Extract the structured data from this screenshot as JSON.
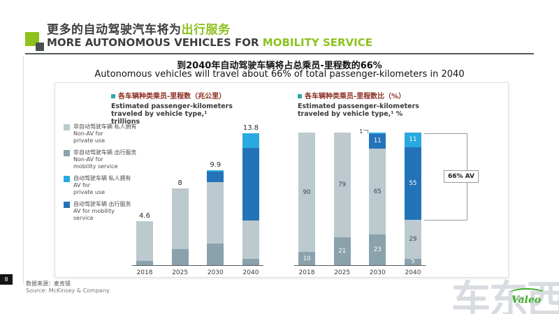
{
  "slide": {
    "title_zh_prefix": "更多的自动驾驶汽车将为",
    "title_zh_accent": "出行服务",
    "title_en_prefix": "MORE AUTONOMOUS VEHICLES FOR ",
    "title_en_accent": "MOBILITY SERVICE",
    "subtitle_zh": "到2040年自动驾驶车辆将占总乘员-里程数的66%",
    "subtitle_en": "Autonomous vehicles will travel about 66% of total passenger-kilometers in 2040",
    "page_number": "8",
    "source_zh": "数据来源：麦肯锡",
    "source_en": "Source: McKinsey & Company",
    "watermark": "车东西",
    "logo_text": "Valeo"
  },
  "colors": {
    "accent_green": "#8CC21E",
    "chart_title_red": "#8C2E21",
    "non_av_private": "#BCC9CF",
    "non_av_mobility": "#8AA2AB",
    "av_private": "#29A9E1",
    "av_mobility": "#2373B9"
  },
  "legend": [
    {
      "zh": "非自动驾驶车辆 私人拥有",
      "en1": "Non-AV for",
      "en2": "private use",
      "color_key": "non_av_private"
    },
    {
      "zh": "非自动驾驶车辆 出行服务",
      "en1": "Non-AV for",
      "en2": "mobility service",
      "color_key": "non_av_mobility"
    },
    {
      "zh": "自动驾驶车辆 私人拥有",
      "en1": "AV for",
      "en2": "private use",
      "color_key": "av_private"
    },
    {
      "zh": "自动驾驶车辆 出行服务",
      "en1": "AV for mobility",
      "en2": "service",
      "color_key": "av_mobility"
    }
  ],
  "chart_data": [
    {
      "type": "bar",
      "stacked": true,
      "title_zh": "各车辆种类乘员-里程数（兆公里）",
      "title_en": "Estimated passenger-kilometers traveled by vehicle type,¹ trillions",
      "categories": [
        "2018",
        "2025",
        "2030",
        "2040"
      ],
      "totals": [
        4.6,
        8,
        9.9,
        13.8
      ],
      "total_labels": [
        "4.6",
        "8",
        "9.9",
        "13.8"
      ],
      "ymax": 14.6,
      "series": [
        {
          "name": "Non-AV for mobility service",
          "key": "non-av-mobility",
          "color_key": "non_av_mobility",
          "values": [
            0.46,
            1.68,
            2.28,
            0.69
          ]
        },
        {
          "name": "Non-AV for private use",
          "key": "non-av-private",
          "color_key": "non_av_private",
          "dark_label": true,
          "values": [
            4.14,
            6.32,
            6.43,
            4.0
          ]
        },
        {
          "name": "AV for mobility service",
          "key": "av-mobility",
          "color_key": "av_mobility",
          "values": [
            0,
            0,
            1.09,
            7.59
          ]
        },
        {
          "name": "AV for private use",
          "key": "av-private",
          "color_key": "av_private",
          "values": [
            0,
            0,
            0.1,
            1.52
          ]
        }
      ]
    },
    {
      "type": "bar",
      "stacked": true,
      "percent": true,
      "show_segment_labels": true,
      "title_zh": "各车辆种类乘员-里程数比（%）",
      "title_en": "Estimated passenger-kilometers traveled by vehicle type,¹ %",
      "categories": [
        "2018",
        "2025",
        "2030",
        "2040"
      ],
      "annotation": "66% AV",
      "series": [
        {
          "name": "Non-AV for mobility service",
          "key": "non-av-mobility",
          "color_key": "non_av_mobility",
          "values": [
            10,
            21,
            23,
            5
          ]
        },
        {
          "name": "Non-AV for private use",
          "key": "non-av-private",
          "color_key": "non_av_private",
          "dark_label": true,
          "values": [
            90,
            79,
            65,
            29
          ]
        },
        {
          "name": "AV for mobility service",
          "key": "av-mobility",
          "color_key": "av_mobility",
          "values": [
            0,
            0,
            11,
            55
          ]
        },
        {
          "name": "AV for private use",
          "key": "av-private",
          "color_key": "av_private",
          "values": [
            0,
            0,
            1,
            11
          ]
        }
      ]
    }
  ]
}
